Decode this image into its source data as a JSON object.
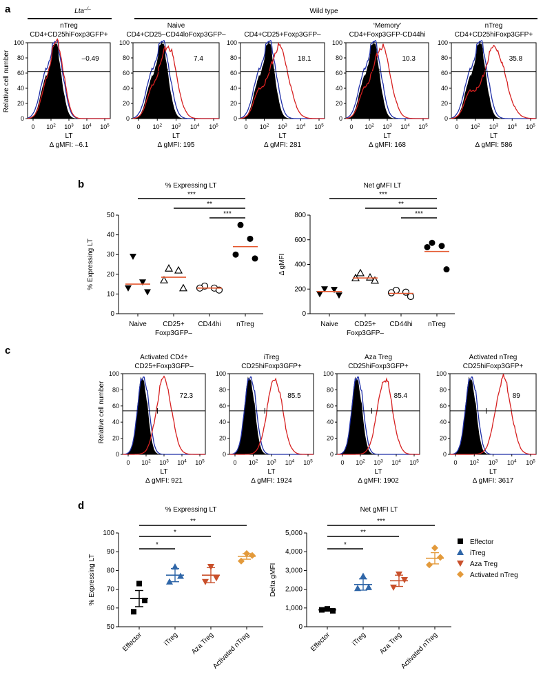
{
  "colors": {
    "black": "#000000",
    "blue": "#1f2fa8",
    "red": "#d62020",
    "orange_line": "#e4572e",
    "effector": "#000000",
    "itreg": "#2f66a8",
    "azatreg": "#c9502b",
    "actntreg": "#e39a3b"
  },
  "panel_a": {
    "letter": "a",
    "group_ko": "Lta",
    "group_ko_sup": "–/–",
    "group_wt": "Wild type",
    "y_title": "Relative cell number",
    "y_ticks": [
      "0",
      "20",
      "40",
      "60",
      "80",
      "100"
    ],
    "x_ticks": [
      "0",
      "10",
      "10",
      "10",
      "10"
    ],
    "x_exps": [
      "",
      "2",
      "3",
      "4",
      "5"
    ],
    "x_label": "LT",
    "histograms": [
      {
        "title1": "nTreg",
        "title2": "CD4+CD25hiFoxp3GFP+",
        "pct": "–0.49",
        "mfi": "Δ gMFI: –6.1",
        "shift": 0
      },
      {
        "title1": "Naive",
        "title2": "CD4+CD25–CD44loFoxp3GFP–",
        "pct": "7.4",
        "mfi": "Δ gMFI: 195",
        "shift": 1
      },
      {
        "title1": "",
        "title2": "CD4+CD25+Foxp3GFP–",
        "pct": "18.1",
        "mfi": "Δ gMFI: 281",
        "shift": 2
      },
      {
        "title1": "‘Memory’",
        "title2": "CD4+Foxp3GFP-CD44hi",
        "pct": "10.3",
        "mfi": "Δ gMFI: 168",
        "shift": 1.5
      },
      {
        "title1": "nTreg",
        "title2": "CD4+CD25hiFoxp3GFP+",
        "pct": "35.8",
        "mfi": "Δ gMFI: 586",
        "shift": 3
      }
    ]
  },
  "panel_b": {
    "letter": "b",
    "charts": [
      {
        "title": "% Expressing LT",
        "ylabel": "% Expressing LT",
        "yticks": [
          "0",
          "10",
          "20",
          "30",
          "40",
          "50"
        ]
      },
      {
        "title": "Net gMFI LT",
        "ylabel": "Δ gMFI",
        "yticks": [
          "0",
          "200",
          "400",
          "600",
          "800"
        ]
      }
    ],
    "categories": [
      "Naive",
      "CD25+",
      "CD44hi",
      "nTreg"
    ],
    "category2": [
      "",
      "Foxp3GFP–",
      "",
      ""
    ],
    "sig": [
      "***",
      "**",
      "***"
    ]
  },
  "panel_c": {
    "letter": "c",
    "y_title": "Relative cell number",
    "y_ticks": [
      "0",
      "20",
      "40",
      "60",
      "80",
      "100"
    ],
    "x_ticks": [
      "0",
      "10",
      "10",
      "10",
      "10"
    ],
    "x_exps": [
      "",
      "2",
      "3",
      "4",
      "5"
    ],
    "x_label": "LT",
    "histograms": [
      {
        "title1": "Activated CD4+",
        "title2": "CD25+Foxp3GFP–",
        "pct": "72.3",
        "mfi": "Δ gMFI: 921"
      },
      {
        "title1": "iTreg",
        "title2": "CD25hiFoxp3GFP+",
        "pct": "85.5",
        "mfi": "Δ gMFI: 1924"
      },
      {
        "title1": "Aza Treg",
        "title2": "CD25hiFoxp3GFP+",
        "pct": "85.4",
        "mfi": "Δ gMFI: 1902"
      },
      {
        "title1": "Activated nTreg",
        "title2": "CD25hiFoxp3GFP+",
        "pct": "89",
        "mfi": "Δ gMFI: 3617"
      }
    ]
  },
  "panel_d": {
    "letter": "d",
    "charts": [
      {
        "title": "% Expressing LT",
        "ylabel": "% Expressing LT",
        "yticks": [
          "50",
          "60",
          "70",
          "80",
          "90",
          "100"
        ]
      },
      {
        "title": "Net gMFI LT",
        "ylabel": "Delta gMFI",
        "yticks": [
          "0",
          "1,000",
          "2,000",
          "3,000",
          "4,000",
          "5,000"
        ]
      }
    ],
    "categories": [
      "Effector",
      "iTreg",
      "Aza Treg",
      "Activated nTreg"
    ],
    "sig_left": [
      "*",
      "*",
      "**"
    ],
    "sig_right": [
      "*",
      "**",
      "***"
    ],
    "legend": [
      "Effector",
      "iTreg",
      "Aza Treg",
      "Activated nTreg"
    ]
  },
  "chart_data": [
    {
      "type": "scatter",
      "panel": "b-left",
      "title": "% Expressing LT",
      "ylabel": "% Expressing LT",
      "ylim": [
        0,
        50
      ],
      "categories": [
        "Naive",
        "CD25+ Foxp3GFP–",
        "CD44hi",
        "nTreg"
      ],
      "series": [
        {
          "name": "Naive",
          "values": [
            29,
            16,
            13,
            11
          ],
          "mean": 15
        },
        {
          "name": "CD25+ Foxp3GFP–",
          "values": [
            23,
            22,
            17,
            13
          ],
          "mean": 18.5
        },
        {
          "name": "CD44hi",
          "values": [
            14,
            13,
            13,
            12
          ],
          "mean": 13
        },
        {
          "name": "nTreg",
          "values": [
            45,
            38,
            30,
            28
          ],
          "mean": 34
        }
      ]
    },
    {
      "type": "scatter",
      "panel": "b-right",
      "title": "Net gMFI LT",
      "ylabel": "Δ gMFI",
      "ylim": [
        0,
        800
      ],
      "categories": [
        "Naive",
        "CD25+ Foxp3GFP–",
        "CD44hi",
        "nTreg"
      ],
      "series": [
        {
          "name": "Naive",
          "values": [
            200,
            195,
            160,
            150
          ],
          "mean": 180
        },
        {
          "name": "CD25+ Foxp3GFP–",
          "values": [
            330,
            295,
            290,
            270
          ],
          "mean": 290
        },
        {
          "name": "CD44hi",
          "values": [
            190,
            175,
            170,
            140
          ],
          "mean": 165
        },
        {
          "name": "nTreg",
          "values": [
            575,
            550,
            540,
            360
          ],
          "mean": 505
        }
      ]
    },
    {
      "type": "scatter",
      "panel": "d-left",
      "title": "% Expressing LT",
      "ylabel": "% Expressing LT",
      "ylim": [
        50,
        100
      ],
      "categories": [
        "Effector",
        "iTreg",
        "Aza Treg",
        "Activated nTreg"
      ],
      "series": [
        {
          "name": "Effector",
          "values": [
            73,
            64,
            58
          ],
          "mean": 65,
          "sem": 4.3
        },
        {
          "name": "iTreg",
          "values": [
            82,
            77,
            74
          ],
          "mean": 77.5,
          "sem": 3.5
        },
        {
          "name": "Aza Treg",
          "values": [
            82,
            76,
            74
          ],
          "mean": 77.5,
          "sem": 4.0
        },
        {
          "name": "Activated nTreg",
          "values": [
            89,
            88,
            85
          ],
          "mean": 87.5,
          "sem": 1.5
        }
      ]
    },
    {
      "type": "scatter",
      "panel": "d-right",
      "title": "Net gMFI LT",
      "ylabel": "Delta gMFI",
      "ylim": [
        0,
        5000
      ],
      "categories": [
        "Effector",
        "iTreg",
        "Aza Treg",
        "Activated nTreg"
      ],
      "series": [
        {
          "name": "Effector",
          "values": [
            950,
            850,
            900
          ],
          "mean": 900,
          "sem": 50
        },
        {
          "name": "iTreg",
          "values": [
            2700,
            2100,
            2050
          ],
          "mean": 2250,
          "sem": 300
        },
        {
          "name": "Aza Treg",
          "values": [
            2800,
            2500,
            2100
          ],
          "mean": 2450,
          "sem": 300
        },
        {
          "name": "Activated nTreg",
          "values": [
            4200,
            3700,
            3300
          ],
          "mean": 3650,
          "sem": 300
        }
      ]
    }
  ]
}
